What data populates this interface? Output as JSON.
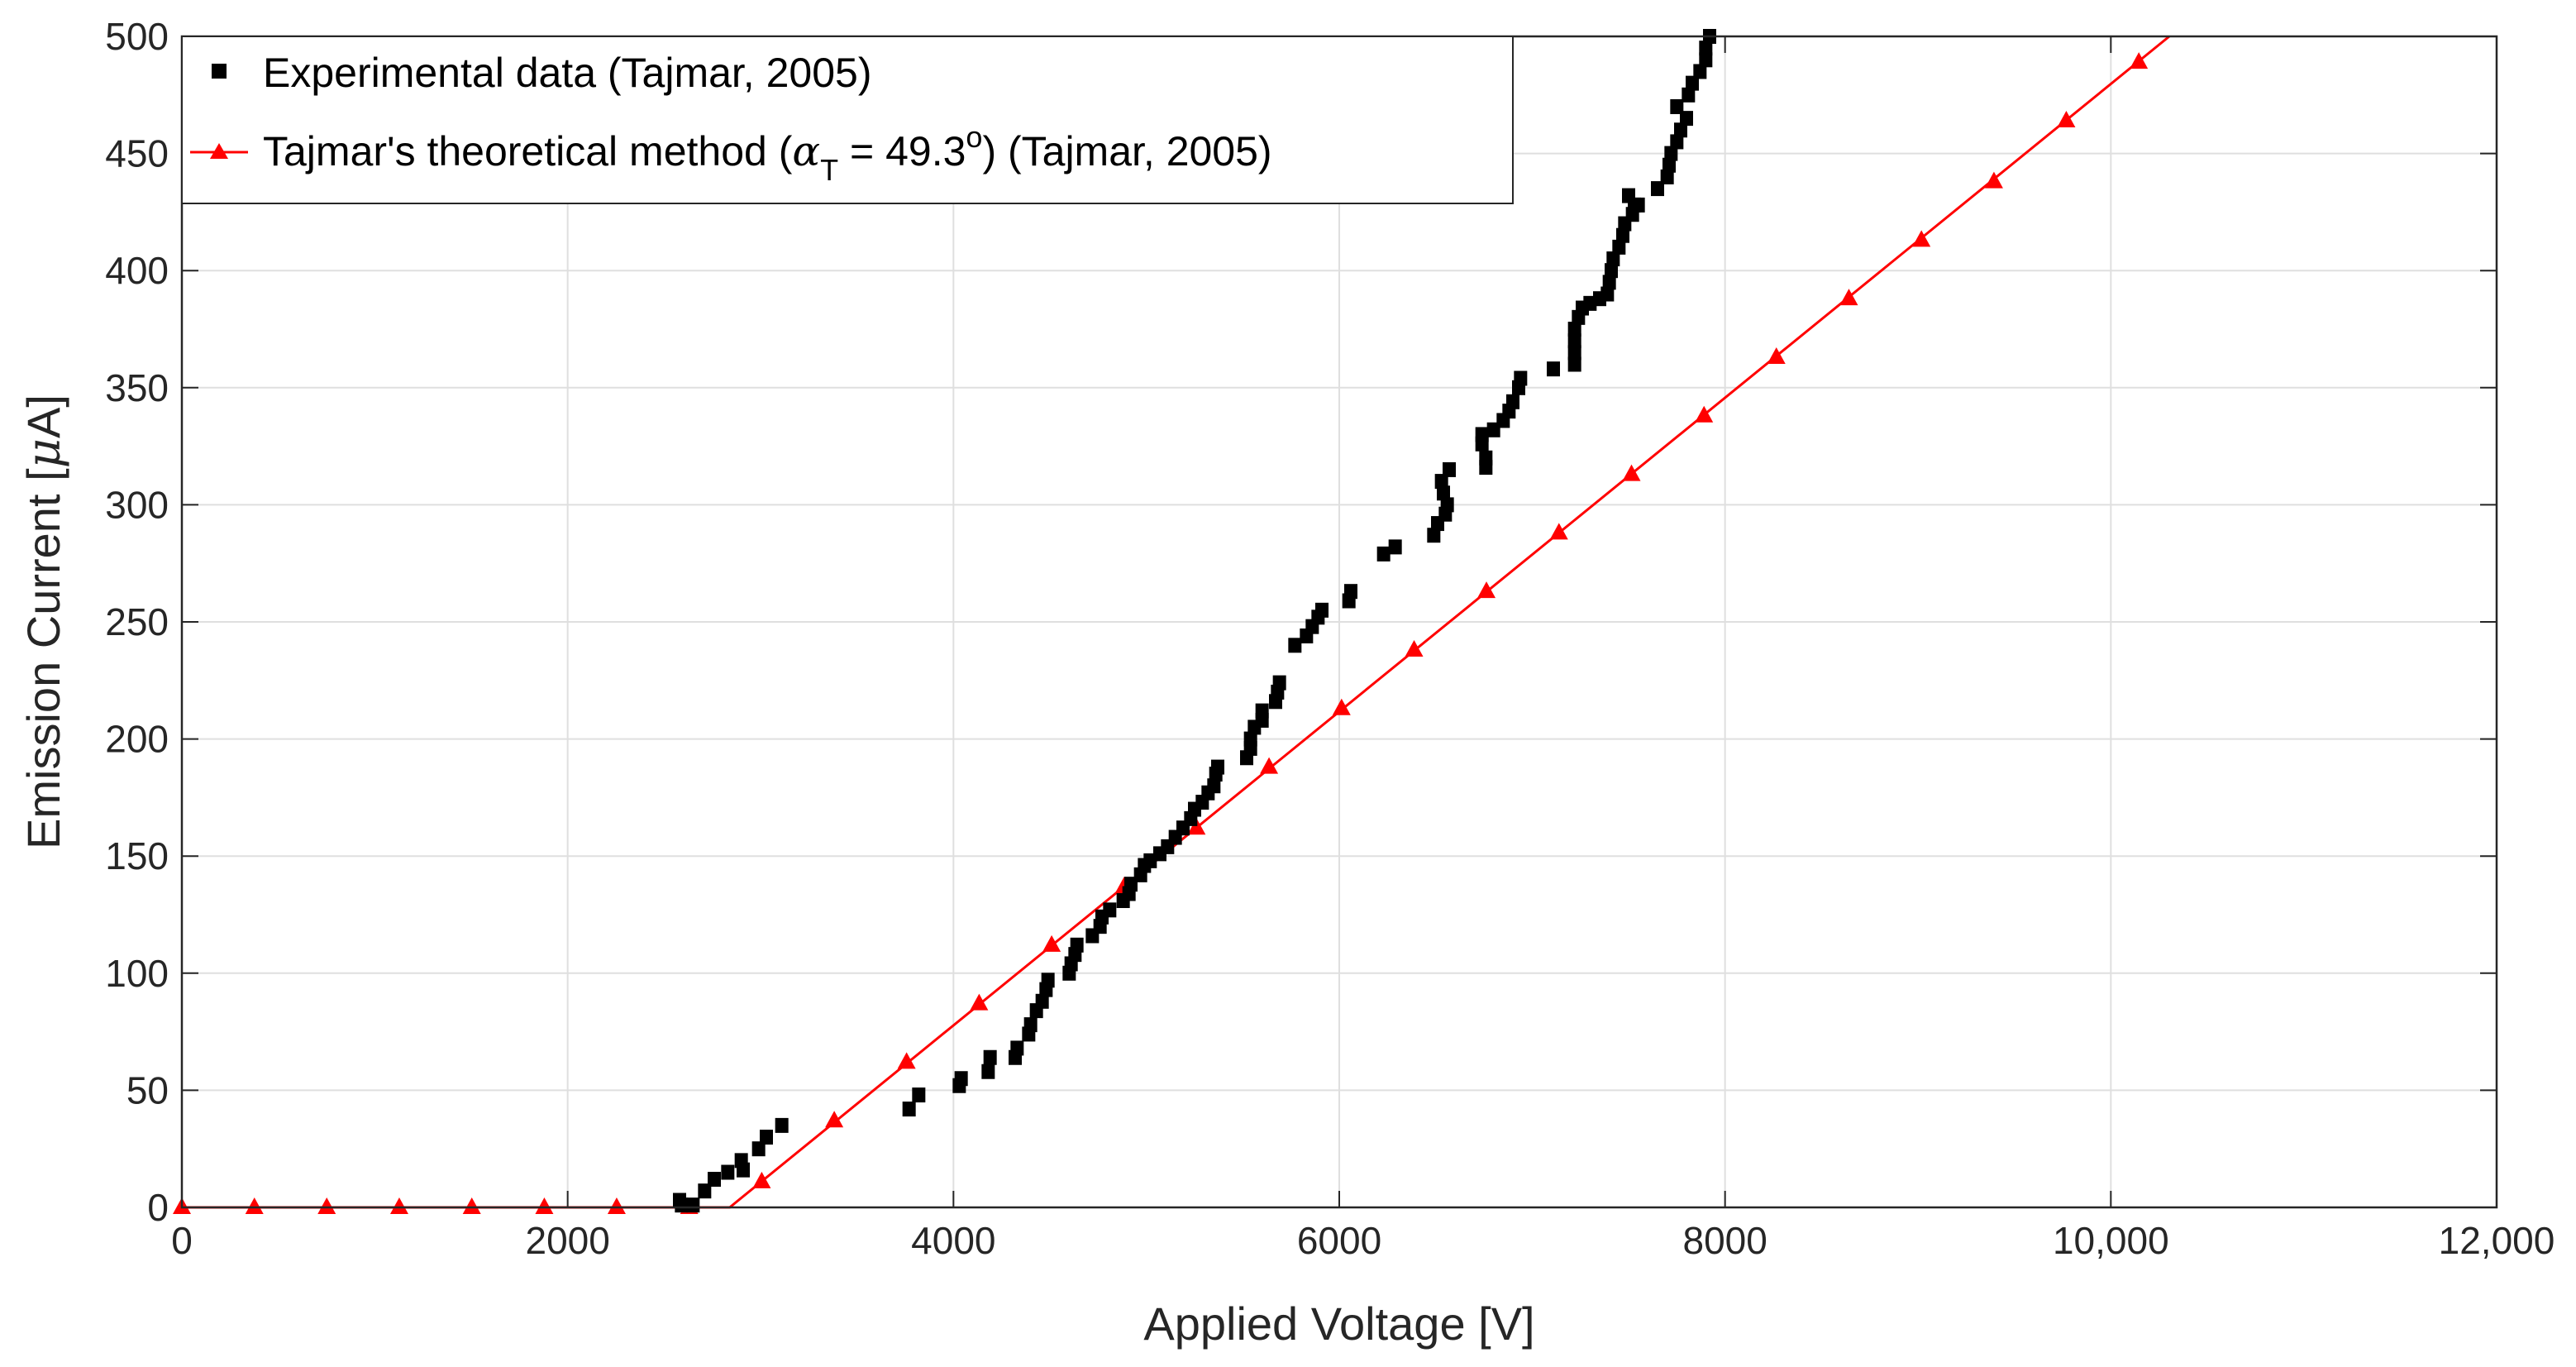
{
  "chart_data": {
    "type": "scatter",
    "title": "",
    "xlabel": "Applied Voltage [V]",
    "ylabel_text": "Emission Current [",
    "ylabel_unit_greek": "μ",
    "ylabel_unit_rest": "A]",
    "xlim": [
      0,
      12000
    ],
    "ylim": [
      0,
      500
    ],
    "x_ticks": [
      0,
      2000,
      4000,
      6000,
      8000,
      10000,
      12000
    ],
    "x_tick_labels": [
      "0",
      "2000",
      "4000",
      "6000",
      "8000",
      "10,000",
      "12,000"
    ],
    "y_ticks": [
      0,
      50,
      100,
      150,
      200,
      250,
      300,
      350,
      400,
      450,
      500
    ],
    "y_tick_labels": [
      "0",
      "50",
      "100",
      "150",
      "200",
      "250",
      "300",
      "350",
      "400",
      "450",
      "500"
    ],
    "grid": true,
    "legend_position": "top-left",
    "colors": {
      "experimental": "#000000",
      "theory": "#ff0000",
      "axis": "#262626",
      "grid": "#dfdfdf"
    },
    "legend": {
      "experimental": "Experimental data (Tajmar, 2005)",
      "theory_prefix": "Tajmar's theoretical method (",
      "theory_symbol": "α",
      "theory_subscript": "T",
      "theory_value": " = 49.3",
      "theory_superscript": "o",
      "theory_suffix": ") (Tajmar, 2005)"
    },
    "series": [
      {
        "name": "Experimental data (Tajmar, 2005)",
        "marker": "square",
        "points": [
          [
            2580,
            3
          ],
          [
            2590,
            1
          ],
          [
            2650,
            1
          ],
          [
            2710,
            7
          ],
          [
            2760,
            12
          ],
          [
            2830,
            15
          ],
          [
            2900,
            20
          ],
          [
            2910,
            16
          ],
          [
            2990,
            25
          ],
          [
            3030,
            30
          ],
          [
            3110,
            35
          ],
          [
            3770,
            42
          ],
          [
            3820,
            48
          ],
          [
            4030,
            52
          ],
          [
            4040,
            55
          ],
          [
            4180,
            58
          ],
          [
            4190,
            64
          ],
          [
            4320,
            64
          ],
          [
            4330,
            68
          ],
          [
            4390,
            74
          ],
          [
            4400,
            78
          ],
          [
            4430,
            84
          ],
          [
            4460,
            88
          ],
          [
            4480,
            93
          ],
          [
            4490,
            97
          ],
          [
            4600,
            100
          ],
          [
            4610,
            104
          ],
          [
            4630,
            108
          ],
          [
            4640,
            112
          ],
          [
            4720,
            116
          ],
          [
            4760,
            120
          ],
          [
            4770,
            124
          ],
          [
            4810,
            127
          ],
          [
            4880,
            131
          ],
          [
            4910,
            134
          ],
          [
            4920,
            138
          ],
          [
            4970,
            142
          ],
          [
            4990,
            146
          ],
          [
            5020,
            148
          ],
          [
            5070,
            151
          ],
          [
            5110,
            154
          ],
          [
            5150,
            158
          ],
          [
            5190,
            162
          ],
          [
            5230,
            166
          ],
          [
            5250,
            170
          ],
          [
            5290,
            173
          ],
          [
            5320,
            177
          ],
          [
            5350,
            180
          ],
          [
            5360,
            185
          ],
          [
            5370,
            188
          ],
          [
            5520,
            192
          ],
          [
            5540,
            196
          ],
          [
            5540,
            200
          ],
          [
            5560,
            205
          ],
          [
            5600,
            208
          ],
          [
            5600,
            212
          ],
          [
            5670,
            216
          ],
          [
            5680,
            220
          ],
          [
            5690,
            224
          ],
          [
            5770,
            240
          ],
          [
            5830,
            244
          ],
          [
            5860,
            248
          ],
          [
            5890,
            252
          ],
          [
            5910,
            255
          ],
          [
            6050,
            259
          ],
          [
            6060,
            263
          ],
          [
            6230,
            279
          ],
          [
            6290,
            282
          ],
          [
            6490,
            287
          ],
          [
            6510,
            292
          ],
          [
            6550,
            296
          ],
          [
            6560,
            300
          ],
          [
            6540,
            305
          ],
          [
            6530,
            310
          ],
          [
            6570,
            315
          ],
          [
            6760,
            316
          ],
          [
            6760,
            320
          ],
          [
            6740,
            326
          ],
          [
            6740,
            330
          ],
          [
            6800,
            332
          ],
          [
            6850,
            336
          ],
          [
            6880,
            340
          ],
          [
            6900,
            344
          ],
          [
            6930,
            350
          ],
          [
            6940,
            354
          ],
          [
            7110,
            358
          ],
          [
            7220,
            360
          ],
          [
            7220,
            365
          ],
          [
            7220,
            370
          ],
          [
            7220,
            375
          ],
          [
            7240,
            380
          ],
          [
            7260,
            384
          ],
          [
            7300,
            386
          ],
          [
            7350,
            388
          ],
          [
            7390,
            390
          ],
          [
            7400,
            395
          ],
          [
            7410,
            400
          ],
          [
            7420,
            405
          ],
          [
            7450,
            410
          ],
          [
            7470,
            415
          ],
          [
            7480,
            420
          ],
          [
            7520,
            424
          ],
          [
            7530,
            428
          ],
          [
            7500,
            432
          ],
          [
            7550,
            428
          ],
          [
            7650,
            435
          ],
          [
            7700,
            440
          ],
          [
            7710,
            445
          ],
          [
            7720,
            450
          ],
          [
            7750,
            455
          ],
          [
            7770,
            460
          ],
          [
            7800,
            465
          ],
          [
            7750,
            470
          ],
          [
            7810,
            475
          ],
          [
            7830,
            480
          ],
          [
            7870,
            485
          ],
          [
            7900,
            490
          ],
          [
            7900,
            495
          ],
          [
            7920,
            500
          ]
        ]
      },
      {
        "name": "Tajmar's theoretical method (αT = 49.3o) (Tajmar, 2005)",
        "marker": "triangle",
        "line": [
          [
            0,
            0
          ],
          [
            2840,
            0
          ],
          [
            10303,
            500
          ]
        ],
        "points": [
          [
            0,
            0
          ],
          [
            376,
            0
          ],
          [
            751,
            0
          ],
          [
            1127,
            0
          ],
          [
            1503,
            0
          ],
          [
            1879,
            0
          ],
          [
            2254,
            0
          ],
          [
            2630,
            0
          ],
          [
            3006,
            11
          ],
          [
            3382,
            37
          ],
          [
            3757,
            62
          ],
          [
            4133,
            87
          ],
          [
            4509,
            112
          ],
          [
            4885,
            137
          ],
          [
            5260,
            162
          ],
          [
            5636,
            188
          ],
          [
            6012,
            213
          ],
          [
            6388,
            238
          ],
          [
            6763,
            263
          ],
          [
            7139,
            288
          ],
          [
            7515,
            313
          ],
          [
            7891,
            338
          ],
          [
            8266,
            363
          ],
          [
            8642,
            388
          ],
          [
            9018,
            413
          ],
          [
            9394,
            438
          ],
          [
            9769,
            464
          ],
          [
            10145,
            489
          ]
        ]
      }
    ]
  }
}
